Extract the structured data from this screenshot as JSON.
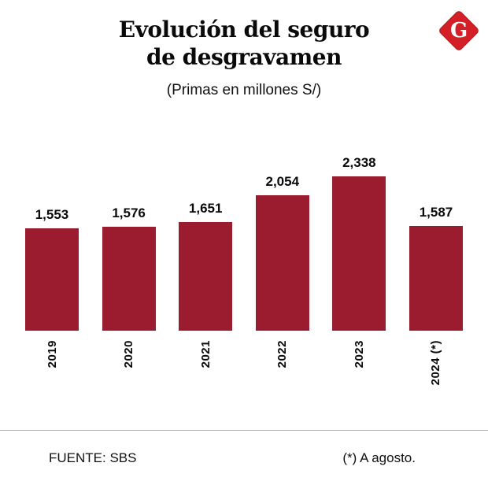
{
  "header": {
    "title": "Evolución del seguro de desgravamen",
    "subtitle": "(Primas en millones S/)",
    "logo_letter": "G"
  },
  "chart_data": {
    "type": "bar",
    "categories": [
      "2019",
      "2020",
      "2021",
      "2022",
      "2023",
      "2024 (*)"
    ],
    "values": [
      1553,
      1576,
      1651,
      2054,
      2338,
      1587
    ],
    "value_labels": [
      "1,553",
      "1,576",
      "1,651",
      "2,054",
      "2,338",
      "1,587"
    ],
    "title": "Evolución del seguro de desgravamen",
    "subtitle": "(Primas en millones S/)",
    "xlabel": "",
    "ylabel": "",
    "ylim": [
      0,
      2338
    ],
    "bar_color": "#9b1b2f",
    "grid": false,
    "legend": false
  },
  "footer": {
    "source": "FUENTE: SBS",
    "note": "(*) A agosto."
  },
  "colors": {
    "bar": "#9b1b2f",
    "logo_red": "#d32027",
    "background": "#ffffff",
    "divider": "#aeaeae",
    "text": "#0a0a0a"
  }
}
